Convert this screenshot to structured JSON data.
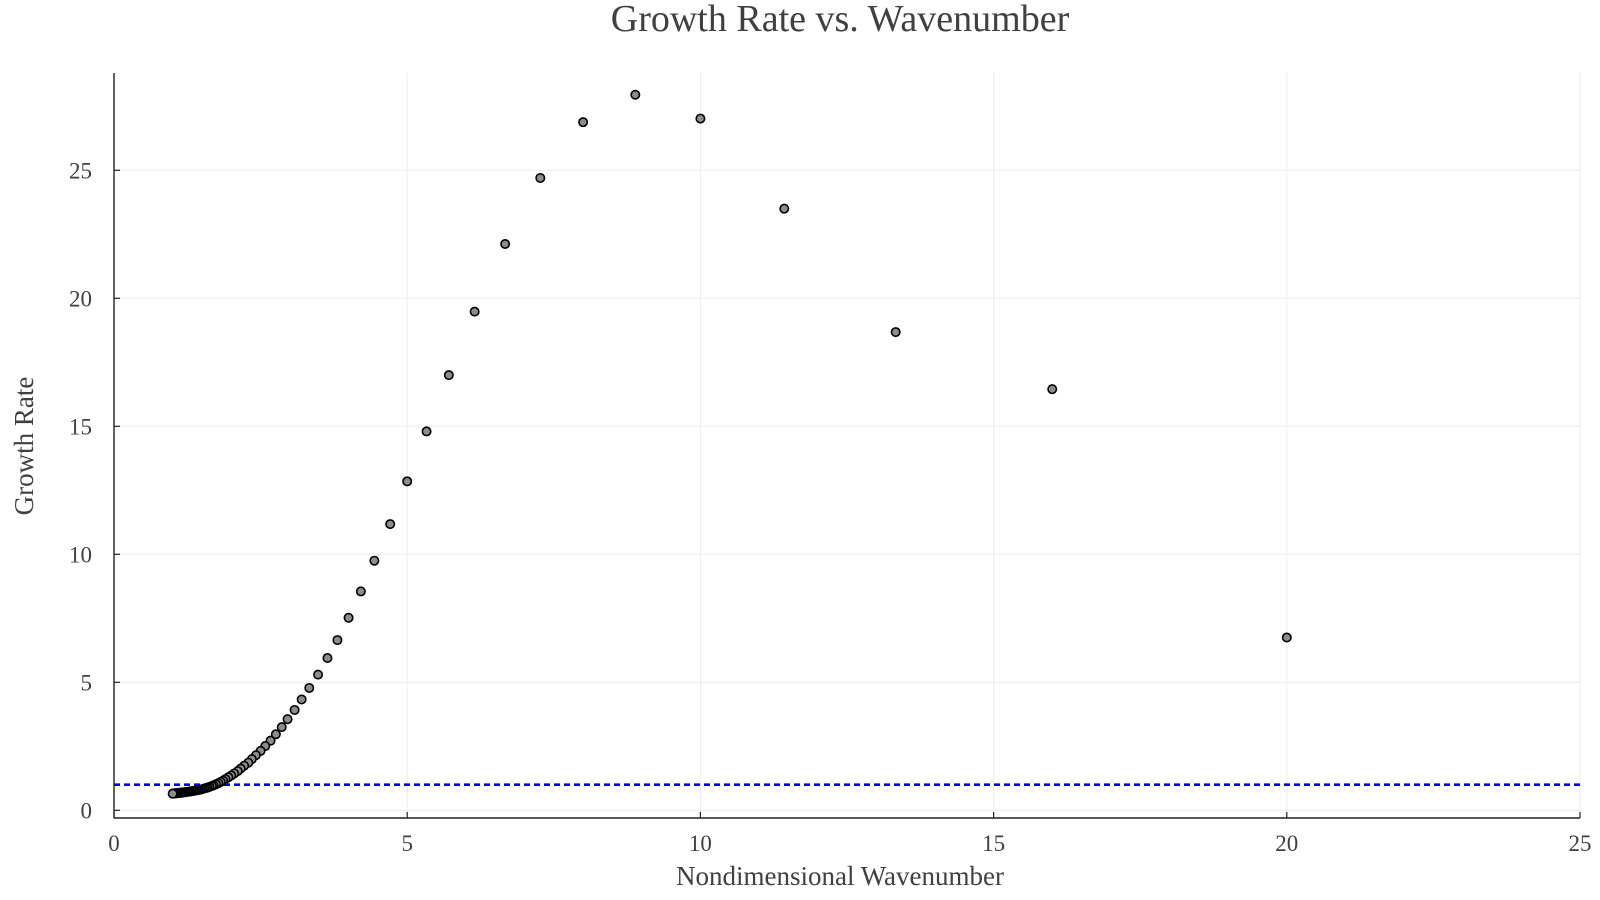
{
  "chart_data": {
    "type": "scatter",
    "title": "Growth Rate vs. Wavenumber",
    "xlabel": "Nondimensional Wavenumber",
    "ylabel": "Growth Rate",
    "xlim": [
      0,
      25
    ],
    "ylim": [
      -0.3,
      28.8
    ],
    "xticks": [
      0,
      5,
      10,
      15,
      20,
      25
    ],
    "yticks": [
      0,
      5,
      10,
      15,
      20,
      25
    ],
    "grid": true,
    "legend": "none",
    "marker_color": "#8c8c8c",
    "marker_edge_color": "#000000",
    "reference_line": {
      "y": 1.0,
      "color": "#0000ee",
      "style": "dashed"
    },
    "series": [
      {
        "x": [
          20.0,
          16.0,
          13.33,
          11.43,
          10.0,
          8.89,
          8.0,
          7.27,
          6.67,
          6.15,
          5.71,
          5.33,
          5.0,
          4.71,
          4.44,
          4.21,
          4.0,
          3.81,
          3.64,
          3.48,
          3.33,
          3.2,
          3.08,
          2.96,
          2.86,
          2.76,
          2.67,
          2.58,
          2.5,
          2.42,
          2.35,
          2.29,
          2.22,
          2.16,
          2.11,
          2.05,
          2.0,
          1.95,
          1.9,
          1.86,
          1.82,
          1.78,
          1.74,
          1.7,
          1.67,
          1.63,
          1.6,
          1.57,
          1.54,
          1.51,
          1.48,
          1.45,
          1.43,
          1.4,
          1.38,
          1.36,
          1.33,
          1.31,
          1.29,
          1.27,
          1.25,
          1.23,
          1.21,
          1.19,
          1.18,
          1.16,
          1.14,
          1.13,
          1.11,
          1.1,
          1.08,
          1.07,
          1.05,
          1.04,
          1.03,
          1.01,
          1.0
        ],
        "y": [
          6.75,
          16.45,
          18.68,
          23.5,
          27.02,
          27.95,
          26.88,
          24.7,
          22.12,
          19.48,
          17.0,
          14.8,
          12.85,
          11.18,
          9.75,
          8.55,
          7.52,
          6.65,
          5.95,
          5.3,
          4.78,
          4.33,
          3.92,
          3.56,
          3.25,
          2.97,
          2.72,
          2.51,
          2.32,
          2.15,
          2.0,
          1.86,
          1.74,
          1.63,
          1.53,
          1.44,
          1.36,
          1.29,
          1.22,
          1.16,
          1.11,
          1.06,
          1.02,
          0.98,
          0.95,
          0.92,
          0.89,
          0.87,
          0.85,
          0.83,
          0.81,
          0.8,
          0.79,
          0.78,
          0.77,
          0.76,
          0.75,
          0.74,
          0.73,
          0.73,
          0.72,
          0.71,
          0.71,
          0.7,
          0.7,
          0.69,
          0.69,
          0.68,
          0.68,
          0.68,
          0.67,
          0.67,
          0.67,
          0.66,
          0.66,
          0.66,
          0.65
        ]
      }
    ]
  }
}
